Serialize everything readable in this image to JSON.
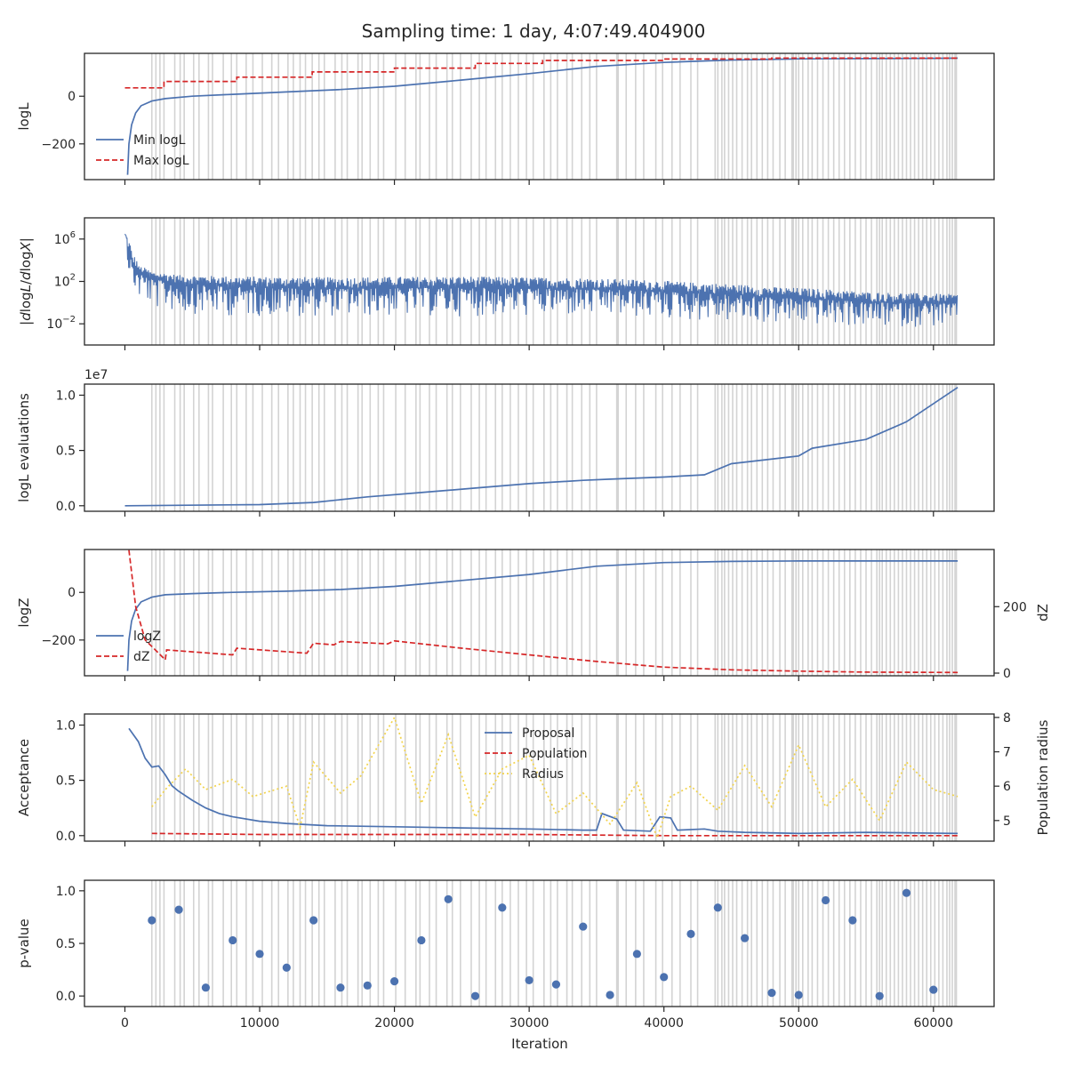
{
  "figure": {
    "title": "Sampling time: 1 day, 4:07:49.404900",
    "xlabel": "Iteration",
    "x_ticks": [
      0,
      10000,
      20000,
      30000,
      40000,
      50000,
      60000
    ],
    "x_tick_labels": [
      "0",
      "10000",
      "20000",
      "30000",
      "40000",
      "50000",
      "60000"
    ],
    "x_range": [
      -3000,
      64500
    ],
    "insertion_markers": {
      "color": "#d3d3d3",
      "iterations": [
        2000,
        2300,
        2600,
        2900,
        3700,
        4100,
        4400,
        5100,
        5500,
        6200,
        6500,
        7300,
        7900,
        8300,
        9000,
        9500,
        10200,
        10900,
        11400,
        12100,
        12500,
        13000,
        13400,
        13900,
        14400,
        14800,
        15600,
        16100,
        16500,
        17300,
        17600,
        18200,
        18800,
        19200,
        20100,
        20800,
        21600,
        21900,
        22600,
        23100,
        23900,
        24300,
        24900,
        25700,
        26300,
        26800,
        27500,
        28000,
        28600,
        29200,
        29800,
        30300,
        31100,
        31600,
        32100,
        32800,
        33200,
        33900,
        34500,
        35000,
        36500,
        36600,
        37200,
        37900,
        38500,
        39400,
        39900,
        40600,
        41200,
        42000,
        42500,
        43800,
        44000,
        44300,
        44500,
        44800,
        45100,
        45400,
        45800,
        46200,
        46500,
        46900,
        47300,
        47700,
        48100,
        48600,
        49000,
        49500,
        49600,
        49800,
        50000,
        50300,
        50700,
        51000,
        51400,
        51800,
        52200,
        52600,
        53000,
        53400,
        53800,
        54200,
        54600,
        55000,
        55400,
        55800,
        56000,
        56200,
        56500,
        56800,
        57100,
        57400,
        57700,
        58000,
        58300,
        58600,
        58900,
        59200,
        59500,
        59800,
        60100,
        60400,
        60700,
        61000,
        61200,
        61400,
        61600,
        61700
      ]
    },
    "colors": {
      "blue": "#4c72b0",
      "red": "#d62728",
      "yellow": "#f2d34c",
      "axis": "#262626"
    }
  },
  "chart_data": [
    {
      "type": "line",
      "ylabel": "logL",
      "ylim": [
        -350,
        180
      ],
      "y_ticks": [
        0,
        -200
      ],
      "y_tick_labels": [
        "0",
        "−200"
      ],
      "legend": {
        "placement": "lower-left",
        "entries": [
          {
            "name": "Min logL",
            "style": "solid",
            "color": "#4c72b0"
          },
          {
            "name": "Max logL",
            "style": "dashed",
            "color": "#d62728"
          }
        ]
      },
      "series": [
        {
          "name": "Min logL",
          "style": "solid",
          "color": "#4c72b0",
          "x": [
            200,
            300,
            500,
            800,
            1200,
            2000,
            3000,
            5000,
            8000,
            12000,
            16000,
            20000,
            25000,
            30000,
            35000,
            40000,
            45000,
            50000,
            55000,
            60000,
            61800
          ],
          "y": [
            -330,
            -200,
            -120,
            -70,
            -40,
            -20,
            -10,
            0,
            8,
            18,
            28,
            42,
            68,
            95,
            125,
            142,
            152,
            157,
            158,
            159,
            160
          ]
        },
        {
          "name": "Max logL",
          "style": "dashed",
          "color": "#d62728",
          "x": [
            0,
            2900,
            2900,
            8300,
            8300,
            13900,
            13900,
            20000,
            20000,
            26000,
            26000,
            31000,
            31000,
            40000,
            40000,
            48000,
            48000,
            61800
          ],
          "y": [
            35,
            35,
            62,
            62,
            80,
            80,
            102,
            102,
            118,
            118,
            138,
            138,
            150,
            150,
            156,
            156,
            160,
            160
          ]
        }
      ]
    },
    {
      "type": "line",
      "ylabel": "|dlogL/dlogX|",
      "y_scale": "log",
      "ylim": [
        0.0001,
        100000000
      ],
      "y_ticks": [
        1000000,
        100,
        0.01
      ],
      "y_tick_labels": [
        [
          "10",
          "6"
        ],
        [
          "10",
          "2"
        ],
        [
          "10",
          "−2"
        ]
      ],
      "series": [
        {
          "name": "",
          "style": "noisy",
          "color": "#4c72b0",
          "x": [
            0,
            200,
            500,
            1000,
            2000,
            4000,
            8000,
            15000,
            25000,
            35000,
            42000,
            48000,
            55000,
            61800
          ],
          "y_center": [
            3000000,
            100000,
            3000,
            600,
            150,
            60,
            30,
            20,
            25,
            18,
            8,
            3,
            1,
            0.8
          ],
          "y_upper": [
            3000000,
            1000000,
            40000,
            3000,
            800,
            400,
            300,
            250,
            300,
            200,
            80,
            30,
            10,
            6
          ],
          "y_lower": [
            3000000,
            1000,
            20,
            2,
            0.3,
            0.1,
            0.05,
            0.05,
            0.05,
            0.05,
            0.02,
            0.01,
            0.005,
            0.005
          ]
        }
      ]
    },
    {
      "type": "line",
      "ylabel": "logL evaluations",
      "offset_text": "1e7",
      "ylim": [
        -0.05,
        1.1
      ],
      "y_ticks": [
        1.0,
        0.5,
        0.0
      ],
      "y_tick_labels": [
        "1.0",
        "0.5",
        "0.0"
      ],
      "series": [
        {
          "name": "",
          "style": "solid",
          "color": "#4c72b0",
          "x": [
            0,
            10000,
            14000,
            18000,
            22000,
            26000,
            30000,
            34000,
            36000,
            40000,
            43000,
            45000,
            50000,
            51000,
            55000,
            58000,
            61800
          ],
          "y": [
            0.0,
            0.01,
            0.03,
            0.08,
            0.12,
            0.16,
            0.2,
            0.23,
            0.24,
            0.26,
            0.28,
            0.38,
            0.45,
            0.52,
            0.6,
            0.76,
            1.07
          ]
        }
      ]
    },
    {
      "type": "line",
      "ylabel": "logZ",
      "ylabel_right": "dZ",
      "ylim": [
        -350,
        180
      ],
      "y_ticks": [
        0,
        -200
      ],
      "y_tick_labels": [
        "0",
        "−200"
      ],
      "ylim_right": [
        -8,
        372
      ],
      "y_ticks_right": [
        200,
        0
      ],
      "y_tick_labels_right": [
        "200",
        "0"
      ],
      "legend": {
        "placement": "lower-left",
        "entries": [
          {
            "name": "logZ",
            "style": "solid",
            "color": "#4c72b0"
          },
          {
            "name": "dZ",
            "style": "dashed",
            "color": "#d62728"
          }
        ]
      },
      "series": [
        {
          "name": "logZ",
          "axis": "left",
          "style": "solid",
          "color": "#4c72b0",
          "x": [
            200,
            300,
            500,
            800,
            1200,
            2000,
            3000,
            5000,
            8000,
            12000,
            16000,
            20000,
            25000,
            30000,
            35000,
            40000,
            45000,
            50000,
            55000,
            61800
          ],
          "y": [
            -330,
            -200,
            -120,
            -70,
            -40,
            -20,
            -10,
            -5,
            0,
            5,
            12,
            25,
            50,
            75,
            110,
            125,
            130,
            132,
            132,
            132
          ]
        },
        {
          "name": "dZ",
          "axis": "right",
          "style": "dashed",
          "color": "#d62728",
          "x": [
            300,
            800,
            1500,
            2500,
            3000,
            3100,
            8000,
            8300,
            13500,
            14000,
            15500,
            16000,
            19500,
            20000,
            25000,
            30000,
            35000,
            40000,
            45000,
            50000,
            55000,
            61800
          ],
          "y": [
            370,
            200,
            100,
            60,
            40,
            70,
            55,
            75,
            60,
            90,
            85,
            95,
            88,
            97,
            75,
            55,
            35,
            18,
            10,
            6,
            3,
            2
          ]
        }
      ]
    },
    {
      "type": "line",
      "ylabel": "Acceptance",
      "ylabel_right": "Population radius",
      "ylim": [
        -0.05,
        1.1
      ],
      "y_ticks": [
        1.0,
        0.5,
        0.0
      ],
      "y_tick_labels": [
        "1.0",
        "0.5",
        "0.0"
      ],
      "ylim_right": [
        4.4,
        8.1
      ],
      "y_ticks_right": [
        8,
        7,
        6,
        5
      ],
      "y_tick_labels_right": [
        "8",
        "7",
        "6",
        "5"
      ],
      "legend": {
        "placement": "upper-center",
        "entries": [
          {
            "name": "Proposal",
            "style": "solid",
            "color": "#4c72b0"
          },
          {
            "name": "Population",
            "style": "dashed",
            "color": "#d62728"
          },
          {
            "name": "Radius",
            "style": "dotted",
            "color": "#f2d34c"
          }
        ]
      },
      "series": [
        {
          "name": "Proposal",
          "axis": "left",
          "style": "solid",
          "color": "#4c72b0",
          "x": [
            300,
            1000,
            1500,
            2000,
            2500,
            3000,
            3500,
            4000,
            5000,
            6000,
            7000,
            8000,
            10000,
            12000,
            15000,
            20000,
            25000,
            30000,
            34000,
            35000,
            35400,
            36500,
            37000,
            39000,
            39700,
            40500,
            41000,
            43000,
            44000,
            46000,
            50000,
            55000,
            61800
          ],
          "y": [
            0.97,
            0.85,
            0.7,
            0.62,
            0.63,
            0.55,
            0.45,
            0.4,
            0.32,
            0.25,
            0.2,
            0.17,
            0.13,
            0.11,
            0.09,
            0.08,
            0.07,
            0.06,
            0.05,
            0.05,
            0.2,
            0.15,
            0.05,
            0.04,
            0.17,
            0.16,
            0.05,
            0.06,
            0.04,
            0.03,
            0.02,
            0.03,
            0.02
          ]
        },
        {
          "name": "Population",
          "axis": "left",
          "style": "dashed",
          "color": "#d62728",
          "x": [
            2000,
            10000,
            20000,
            30000,
            40000,
            50000,
            61800
          ],
          "y": [
            0.02,
            0.01,
            0.01,
            0.01,
            0.0,
            0.0,
            0.0
          ]
        },
        {
          "name": "Radius",
          "axis": "right",
          "style": "dotted",
          "color": "#f2d34c",
          "x": [
            2000,
            3000,
            4500,
            6000,
            8000,
            9500,
            12000,
            13000,
            14000,
            16000,
            17500,
            20000,
            22000,
            24000,
            26000,
            28000,
            30000,
            32000,
            34000,
            36000,
            38000,
            39500,
            40500,
            42000,
            44000,
            46000,
            48000,
            50000,
            52000,
            54000,
            56000,
            58000,
            60000,
            61800
          ],
          "y": [
            5.4,
            5.9,
            6.5,
            5.9,
            6.2,
            5.7,
            6.0,
            4.8,
            6.7,
            5.8,
            6.3,
            8.0,
            5.5,
            7.5,
            5.1,
            6.5,
            6.9,
            5.2,
            5.8,
            4.9,
            6.1,
            4.5,
            5.7,
            6.0,
            5.3,
            6.6,
            5.4,
            7.2,
            5.4,
            6.2,
            5.0,
            6.7,
            5.9,
            5.7
          ]
        }
      ]
    },
    {
      "type": "scatter",
      "ylabel": "p-value",
      "ylim": [
        -0.1,
        1.1
      ],
      "y_ticks": [
        1.0,
        0.5,
        0.0
      ],
      "y_tick_labels": [
        "1.0",
        "0.5",
        "0.0"
      ],
      "series": [
        {
          "name": "",
          "color": "#4c72b0",
          "x": [
            2000,
            4000,
            6000,
            8000,
            10000,
            12000,
            14000,
            16000,
            18000,
            20000,
            22000,
            24000,
            26000,
            28000,
            30000,
            32000,
            34000,
            36000,
            38000,
            40000,
            42000,
            44000,
            46000,
            48000,
            50000,
            52000,
            54000,
            56000,
            58000,
            60000
          ],
          "y": [
            0.72,
            0.82,
            0.08,
            0.53,
            0.4,
            0.27,
            0.72,
            0.08,
            0.1,
            0.14,
            0.53,
            0.92,
            0.0,
            0.84,
            0.15,
            0.11,
            0.66,
            0.01,
            0.4,
            0.18,
            0.59,
            0.84,
            0.55,
            0.03,
            0.01,
            0.91,
            0.72,
            0.0,
            0.98,
            0.06
          ]
        }
      ]
    }
  ]
}
